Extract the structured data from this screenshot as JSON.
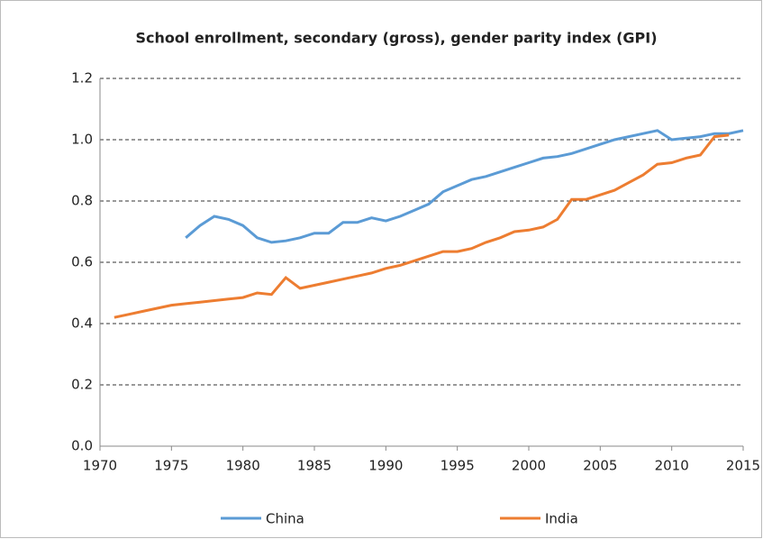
{
  "chart_data": {
    "type": "line",
    "title": "School enrollment, secondary (gross), gender parity index (GPI)",
    "x": [
      1971,
      1972,
      1973,
      1974,
      1975,
      1976,
      1977,
      1978,
      1979,
      1980,
      1981,
      1982,
      1983,
      1984,
      1985,
      1986,
      1987,
      1988,
      1989,
      1990,
      1991,
      1992,
      1993,
      1994,
      1995,
      1996,
      1997,
      1998,
      1999,
      2000,
      2001,
      2002,
      2003,
      2004,
      2005,
      2006,
      2007,
      2008,
      2009,
      2010,
      2011,
      2012,
      2013,
      2014,
      2015
    ],
    "series": [
      {
        "name": "China",
        "color": "#5b9bd5",
        "values": [
          null,
          null,
          null,
          null,
          null,
          0.68,
          0.72,
          0.75,
          0.74,
          0.72,
          0.68,
          0.665,
          0.67,
          0.68,
          0.695,
          0.695,
          0.73,
          0.73,
          0.745,
          0.735,
          0.75,
          0.77,
          0.79,
          0.83,
          0.85,
          0.87,
          0.88,
          0.895,
          0.91,
          0.925,
          0.94,
          0.945,
          0.955,
          0.97,
          0.985,
          1.0,
          1.01,
          1.02,
          1.03,
          1.0,
          1.005,
          1.01,
          1.02,
          1.02,
          1.03
        ]
      },
      {
        "name": "India",
        "color": "#ed7d31",
        "values": [
          0.42,
          0.43,
          0.44,
          0.45,
          0.46,
          0.465,
          0.47,
          0.475,
          0.48,
          0.485,
          0.5,
          0.495,
          0.55,
          0.515,
          0.525,
          0.535,
          0.545,
          0.555,
          0.565,
          0.58,
          0.59,
          0.605,
          0.62,
          0.635,
          0.635,
          0.645,
          0.665,
          0.68,
          0.7,
          0.705,
          0.715,
          0.74,
          0.805,
          0.805,
          0.82,
          0.835,
          0.86,
          0.885,
          0.92,
          0.925,
          0.94,
          0.95,
          1.01,
          1.015,
          null
        ]
      }
    ],
    "xlim": [
      1970,
      2015
    ],
    "xticks": [
      1970,
      1975,
      1980,
      1985,
      1990,
      1995,
      2000,
      2005,
      2010,
      2015
    ],
    "ylim": [
      0,
      1.2
    ],
    "yticks": [
      {
        "value": 0,
        "label": "0.0"
      },
      0.2,
      0.4,
      0.6,
      0.8,
      {
        "value": 1,
        "label": "1.0"
      },
      1.2
    ],
    "grid": true,
    "legend": "bottom"
  }
}
